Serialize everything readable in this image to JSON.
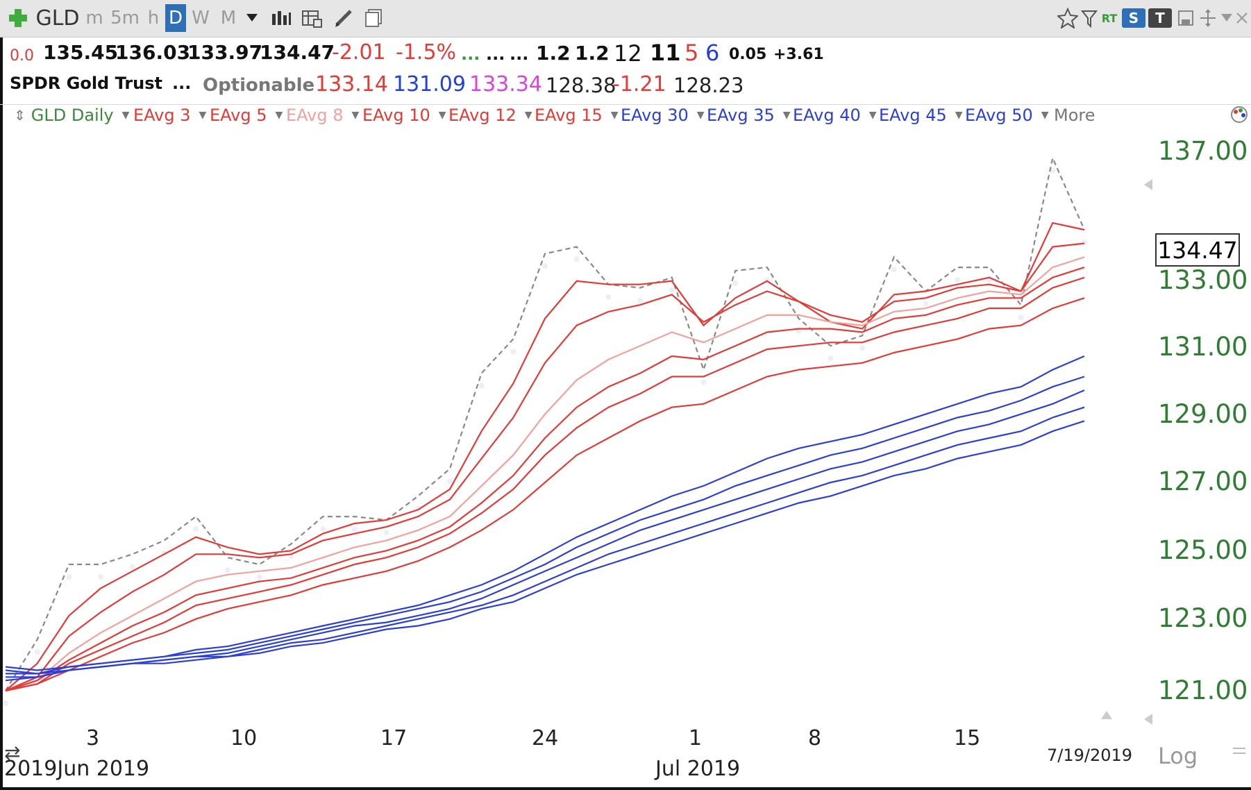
{
  "toolbar": {
    "symbol": "GLD",
    "timeframes": [
      "m",
      "5m",
      "h",
      "D",
      "W",
      "M"
    ],
    "active_timeframe": "D",
    "right_badges": [
      "RT",
      "S",
      "T"
    ]
  },
  "quote": {
    "change_small": "0.0",
    "open": "135.45",
    "high": "136.03",
    "low": "133.97",
    "close": "134.47",
    "change": "-2.01",
    "change_pct": "-1.5%",
    "dots_green": "...",
    "dots1": "...",
    "dots2": "...",
    "v1": "1.2",
    "v2": "1.2",
    "n12": "12",
    "n11": "11",
    "n5": "5",
    "n6": "6",
    "v005": "0.05",
    "v361": "+3.61",
    "name": "SPDR Gold Trust",
    "dots3": "...",
    "optionable": "Optionable",
    "p1": "133.14",
    "p2": "131.09",
    "p3": "133.34",
    "p4": "128.38",
    "p5": "-1.21",
    "p6": "128.23"
  },
  "studies": {
    "main": "GLD Daily",
    "items": [
      {
        "label": "EAvg 3",
        "color": "#e53935"
      },
      {
        "label": "EAvg 5",
        "color": "#e53935"
      },
      {
        "label": "EAvg 8",
        "color": "#f4a09c"
      },
      {
        "label": "EAvg 10",
        "color": "#e53935"
      },
      {
        "label": "EAvg 12",
        "color": "#e53935"
      },
      {
        "label": "EAvg 15",
        "color": "#e53935"
      },
      {
        "label": "EAvg 30",
        "color": "#2b3fd6"
      },
      {
        "label": "EAvg 35",
        "color": "#2b3fd6"
      },
      {
        "label": "EAvg 40",
        "color": "#2b3fd6"
      },
      {
        "label": "EAvg 45",
        "color": "#2b3fd6"
      },
      {
        "label": "EAvg 50",
        "color": "#2b3fd6"
      }
    ],
    "more": "More"
  },
  "axis": {
    "y_ticks": [
      "137.00",
      "133.00",
      "131.00",
      "129.00",
      "127.00",
      "125.00",
      "123.00",
      "121.00"
    ],
    "current_price": "134.47",
    "x_ticks": [
      "3",
      "10",
      "17",
      "24",
      "1",
      "8",
      "15"
    ],
    "month_labels": [
      "2019Jun 2019",
      "Jul 2019"
    ],
    "date_label": "7/19/2019",
    "log_label": "Log"
  },
  "chart_data": {
    "type": "line",
    "ylim": [
      120.5,
      137.6
    ],
    "x": [
      "5/31",
      "6/3",
      "6/4",
      "6/5",
      "6/6",
      "6/7",
      "6/10",
      "6/11",
      "6/12",
      "6/13",
      "6/14",
      "6/17",
      "6/18",
      "6/19",
      "6/20",
      "6/21",
      "6/24",
      "6/25",
      "6/26",
      "6/27",
      "6/28",
      "7/1",
      "7/2",
      "7/3",
      "7/5",
      "7/8",
      "7/9",
      "7/10",
      "7/11",
      "7/12",
      "7/15",
      "7/16",
      "7/17",
      "7/18",
      "7/19"
    ],
    "series": [
      {
        "name": "GLD Daily",
        "values": [
          121.0,
          122.5,
          124.7,
          124.7,
          125.0,
          125.4,
          126.1,
          124.9,
          124.7,
          125.3,
          126.1,
          126.1,
          126.0,
          126.7,
          127.5,
          130.3,
          131.3,
          133.8,
          134.0,
          132.9,
          132.8,
          133.1,
          130.4,
          133.3,
          133.4,
          131.9,
          131.1,
          131.4,
          133.7,
          132.7,
          133.4,
          133.4,
          132.3,
          136.6,
          134.5
        ]
      },
      {
        "name": "EAvg 3",
        "values": [
          121.0,
          121.8,
          123.2,
          124.0,
          124.5,
          125.0,
          125.5,
          125.2,
          125.0,
          125.1,
          125.6,
          125.9,
          126.0,
          126.3,
          126.9,
          128.6,
          130.0,
          131.9,
          133.0,
          132.9,
          132.9,
          133.0,
          131.7,
          132.5,
          133.0,
          132.4,
          131.8,
          131.6,
          132.6,
          132.7,
          132.9,
          133.1,
          132.7,
          134.7,
          134.5
        ]
      },
      {
        "name": "EAvg 5",
        "values": [
          121.0,
          121.4,
          122.6,
          123.3,
          123.9,
          124.4,
          125.0,
          125.0,
          124.9,
          125.0,
          125.4,
          125.6,
          125.8,
          126.1,
          126.6,
          127.8,
          129.0,
          130.6,
          131.7,
          132.1,
          132.3,
          132.6,
          131.8,
          132.3,
          132.7,
          132.4,
          132.0,
          131.8,
          132.4,
          132.5,
          132.8,
          132.9,
          132.7,
          134.0,
          134.1
        ]
      },
      {
        "name": "EAvg 8",
        "values": [
          121.0,
          121.3,
          122.1,
          122.7,
          123.2,
          123.7,
          124.2,
          124.4,
          124.5,
          124.6,
          124.9,
          125.2,
          125.4,
          125.7,
          126.1,
          127.0,
          127.9,
          129.1,
          130.1,
          130.7,
          131.1,
          131.5,
          131.2,
          131.6,
          132.0,
          132.0,
          131.8,
          131.7,
          132.1,
          132.2,
          132.5,
          132.7,
          132.6,
          133.4,
          133.7
        ]
      },
      {
        "name": "EAvg 10",
        "values": [
          121.0,
          121.3,
          121.9,
          122.4,
          122.9,
          123.3,
          123.8,
          124.0,
          124.2,
          124.3,
          124.6,
          124.9,
          125.1,
          125.4,
          125.8,
          126.5,
          127.3,
          128.4,
          129.3,
          129.9,
          130.3,
          130.8,
          130.7,
          131.1,
          131.5,
          131.6,
          131.6,
          131.5,
          131.9,
          132.0,
          132.3,
          132.5,
          132.5,
          133.1,
          133.4
        ]
      },
      {
        "name": "EAvg 12",
        "values": [
          121.0,
          121.2,
          121.8,
          122.2,
          122.6,
          123.0,
          123.5,
          123.7,
          123.9,
          124.1,
          124.4,
          124.7,
          124.9,
          125.2,
          125.6,
          126.2,
          126.9,
          127.9,
          128.7,
          129.3,
          129.7,
          130.2,
          130.2,
          130.6,
          131.0,
          131.1,
          131.2,
          131.2,
          131.5,
          131.7,
          131.9,
          132.2,
          132.2,
          132.8,
          133.1
        ]
      },
      {
        "name": "EAvg 15",
        "values": [
          121.0,
          121.2,
          121.6,
          122.0,
          122.4,
          122.7,
          123.1,
          123.4,
          123.6,
          123.8,
          124.1,
          124.3,
          124.5,
          124.8,
          125.2,
          125.7,
          126.3,
          127.1,
          127.9,
          128.4,
          128.9,
          129.3,
          129.4,
          129.8,
          130.2,
          130.4,
          130.5,
          130.6,
          130.9,
          131.1,
          131.3,
          131.6,
          131.7,
          132.2,
          132.5
        ]
      },
      {
        "name": "EAvg 30",
        "values": [
          121.7,
          121.6,
          121.7,
          121.8,
          121.9,
          122.0,
          122.2,
          122.3,
          122.5,
          122.7,
          122.9,
          123.1,
          123.3,
          123.5,
          123.8,
          124.1,
          124.5,
          125.0,
          125.5,
          125.9,
          126.3,
          126.7,
          127.0,
          127.4,
          127.8,
          128.1,
          128.3,
          128.5,
          128.8,
          129.1,
          129.4,
          129.7,
          129.9,
          130.4,
          130.8
        ]
      },
      {
        "name": "EAvg 35",
        "values": [
          121.6,
          121.5,
          121.7,
          121.8,
          121.9,
          122.0,
          122.1,
          122.2,
          122.4,
          122.6,
          122.8,
          123.0,
          123.2,
          123.4,
          123.6,
          123.9,
          124.3,
          124.7,
          125.2,
          125.6,
          126.0,
          126.3,
          126.6,
          127.0,
          127.3,
          127.6,
          127.9,
          128.1,
          128.4,
          128.7,
          129.0,
          129.2,
          129.5,
          129.9,
          130.2
        ]
      },
      {
        "name": "EAvg 40",
        "values": [
          121.5,
          121.5,
          121.6,
          121.7,
          121.8,
          121.9,
          122.0,
          122.1,
          122.3,
          122.5,
          122.7,
          122.9,
          123.0,
          123.2,
          123.4,
          123.7,
          124.1,
          124.5,
          124.9,
          125.3,
          125.7,
          126.0,
          126.3,
          126.6,
          126.9,
          127.2,
          127.5,
          127.7,
          128.0,
          128.3,
          128.6,
          128.8,
          129.1,
          129.4,
          129.8
        ]
      },
      {
        "name": "EAvg 45",
        "values": [
          121.4,
          121.4,
          121.6,
          121.7,
          121.8,
          121.9,
          122.0,
          122.0,
          122.2,
          122.4,
          122.5,
          122.7,
          122.9,
          123.1,
          123.3,
          123.5,
          123.8,
          124.2,
          124.6,
          125.0,
          125.3,
          125.6,
          125.9,
          126.2,
          126.5,
          126.8,
          127.1,
          127.3,
          127.6,
          127.9,
          128.2,
          128.4,
          128.6,
          129.0,
          129.3
        ]
      },
      {
        "name": "EAvg 50",
        "values": [
          121.3,
          121.4,
          121.6,
          121.7,
          121.8,
          121.8,
          121.9,
          122.0,
          122.1,
          122.3,
          122.4,
          122.6,
          122.8,
          122.9,
          123.1,
          123.4,
          123.6,
          124.0,
          124.4,
          124.7,
          125.0,
          125.3,
          125.6,
          125.9,
          126.2,
          126.5,
          126.7,
          127.0,
          127.3,
          127.5,
          127.8,
          128.0,
          128.2,
          128.6,
          128.9
        ]
      }
    ],
    "colors": [
      "#888888",
      "#e53935",
      "#e53935",
      "#f4a09c",
      "#e53935",
      "#e53935",
      "#e53935",
      "#2b3fd6",
      "#2b3fd6",
      "#2b3fd6",
      "#2b3fd6",
      "#2b3fd6"
    ],
    "grid": false
  }
}
